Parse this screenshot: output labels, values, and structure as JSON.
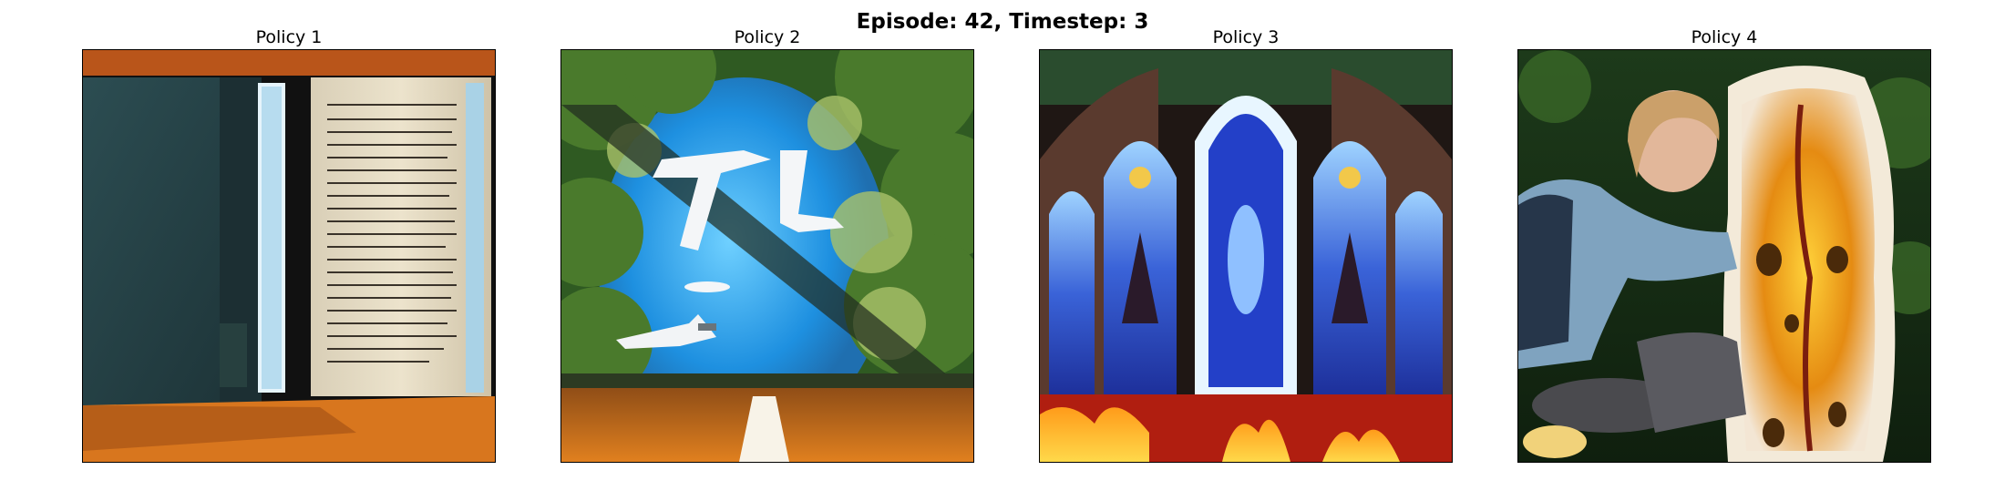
{
  "figure": {
    "title": "Episode: 42, Timestep: 3"
  },
  "panels": [
    {
      "title": "Policy 1"
    },
    {
      "title": "Policy 2"
    },
    {
      "title": "Policy 3"
    },
    {
      "title": "Policy 4"
    }
  ]
}
